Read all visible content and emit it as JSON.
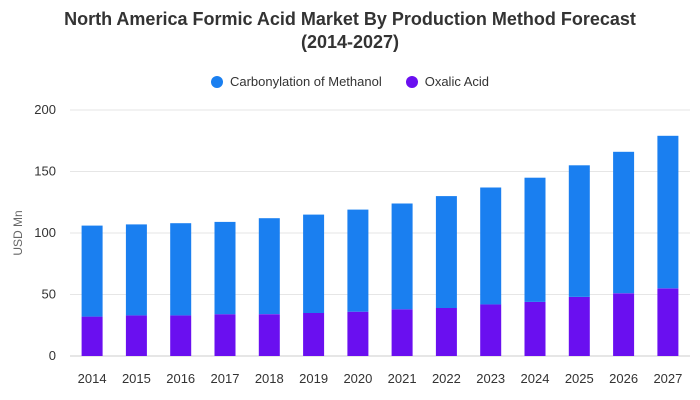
{
  "title_line1": "North America Formic Acid Market By Production Method Forecast",
  "title_line2": "(2014-2027)",
  "chart_data": {
    "type": "bar",
    "stacked": true,
    "categories": [
      "2014",
      "2015",
      "2016",
      "2017",
      "2018",
      "2019",
      "2020",
      "2021",
      "2022",
      "2023",
      "2024",
      "2025",
      "2026",
      "2027"
    ],
    "series": [
      {
        "name": "Oxalic Acid",
        "color": "#6a0ff0",
        "values": [
          32,
          33,
          33,
          34,
          34,
          35,
          36,
          38,
          39,
          42,
          44,
          48,
          51,
          55
        ]
      },
      {
        "name": "Carbonylation of Methanol",
        "color": "#1a7ff0",
        "values": [
          74,
          74,
          75,
          75,
          78,
          80,
          83,
          86,
          91,
          95,
          101,
          107,
          115,
          124
        ]
      }
    ],
    "legend_order": [
      "Carbonylation of Methanol",
      "Oxalic Acid"
    ],
    "legend_position": "top-center",
    "xlabel": "",
    "ylabel": "USD Mn",
    "ylim": [
      0,
      200
    ],
    "yticks": [
      "0",
      "50",
      "100",
      "150",
      "200"
    ],
    "grid": true
  }
}
